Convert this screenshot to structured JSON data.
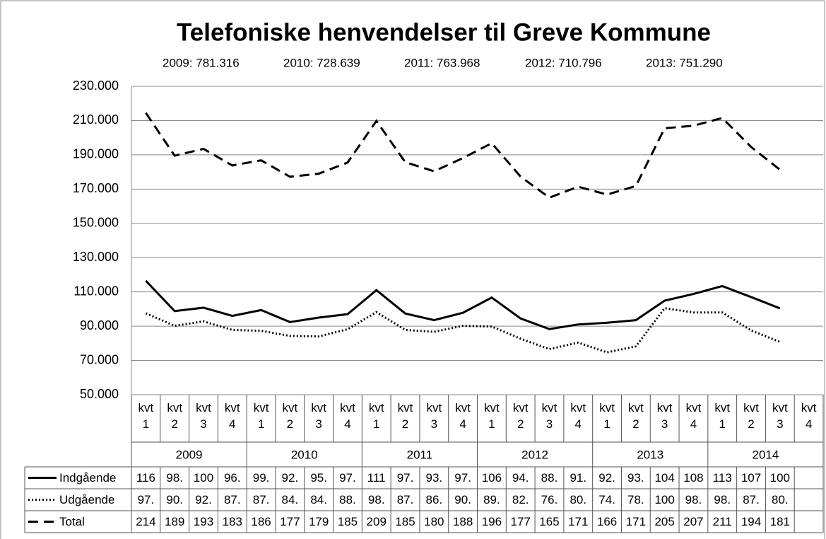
{
  "chart_data": {
    "type": "line",
    "title": "Telefoniske henvendelser til Greve Kommune",
    "annotations": [
      "2009: 781.316",
      "2010: 728.639",
      "2011: 763.968",
      "2012: 710.796",
      "2013: 751.290"
    ],
    "categories": [
      "kvt 1",
      "kvt 2",
      "kvt 3",
      "kvt 4",
      "kvt 1",
      "kvt 2",
      "kvt 3",
      "kvt 4",
      "kvt 1",
      "kvt 2",
      "kvt 3",
      "kvt 4",
      "kvt 1",
      "kvt 2",
      "kvt 3",
      "kvt 4",
      "kvt 1",
      "kvt 2",
      "kvt 3",
      "kvt 4",
      "kvt 1",
      "kvt 2",
      "kvt 3",
      "kvt 4"
    ],
    "groups": [
      "2009",
      "2010",
      "2011",
      "2012",
      "2013",
      "2014"
    ],
    "ylim": [
      50000,
      230000
    ],
    "yticks": [
      {
        "value": 50000,
        "label": "50.000"
      },
      {
        "value": 70000,
        "label": "70.000"
      },
      {
        "value": 90000,
        "label": "90.000"
      },
      {
        "value": 110000,
        "label": "110.000"
      },
      {
        "value": 130000,
        "label": "130.000"
      },
      {
        "value": 150000,
        "label": "150.000"
      },
      {
        "value": 170000,
        "label": "170.000"
      },
      {
        "value": 190000,
        "label": "190.000"
      },
      {
        "value": 210000,
        "label": "210.000"
      },
      {
        "value": 230000,
        "label": "230.000"
      }
    ],
    "grid": true,
    "series": [
      {
        "name": "Indgående",
        "color": "#000000",
        "style": "solid",
        "values": [
          116500,
          98800,
          100800,
          96000,
          99400,
          92400,
          95000,
          97000,
          111000,
          97400,
          93500,
          97800,
          106700,
          94500,
          88300,
          91000,
          92000,
          93500,
          104900,
          108800,
          113400,
          107000,
          100400,
          null
        ],
        "value_labels": [
          "116",
          "98.",
          "100",
          "96.",
          "99.",
          "92.",
          "95.",
          "97.",
          "111",
          "97.",
          "93.",
          "97.",
          "106",
          "94.",
          "88.",
          "91.",
          "92.",
          "93.",
          "104",
          "108",
          "113",
          "107",
          "100",
          null
        ]
      },
      {
        "name": "Udgående",
        "color": "#000000",
        "style": "dotted",
        "values": [
          97500,
          90200,
          92800,
          87800,
          87300,
          84300,
          84000,
          88200,
          98200,
          87800,
          86700,
          90200,
          89800,
          82700,
          76600,
          80400,
          74700,
          78200,
          100500,
          98000,
          98000,
          87500,
          80800,
          null
        ],
        "value_labels": [
          "97.",
          "90.",
          "92.",
          "87.",
          "87.",
          "84.",
          "84.",
          "88.",
          "98.",
          "87.",
          "86.",
          "90.",
          "89.",
          "82.",
          "76.",
          "80.",
          "74.",
          "78.",
          "100",
          "98.",
          "98.",
          "87.",
          "80.",
          null
        ]
      },
      {
        "name": "Total",
        "color": "#000000",
        "style": "dashed",
        "values": [
          214500,
          189500,
          193500,
          183800,
          186800,
          177200,
          179000,
          185500,
          209800,
          185700,
          180400,
          188100,
          196800,
          177300,
          165000,
          171400,
          166800,
          171800,
          205500,
          207000,
          211500,
          194600,
          181300,
          null
        ],
        "value_labels": [
          "214",
          "189",
          "193",
          "183",
          "186",
          "177",
          "179",
          "185",
          "209",
          "185",
          "180",
          "188",
          "196",
          "177",
          "165",
          "171",
          "166",
          "171",
          "205",
          "207",
          "211",
          "194",
          "181",
          null
        ]
      }
    ]
  }
}
